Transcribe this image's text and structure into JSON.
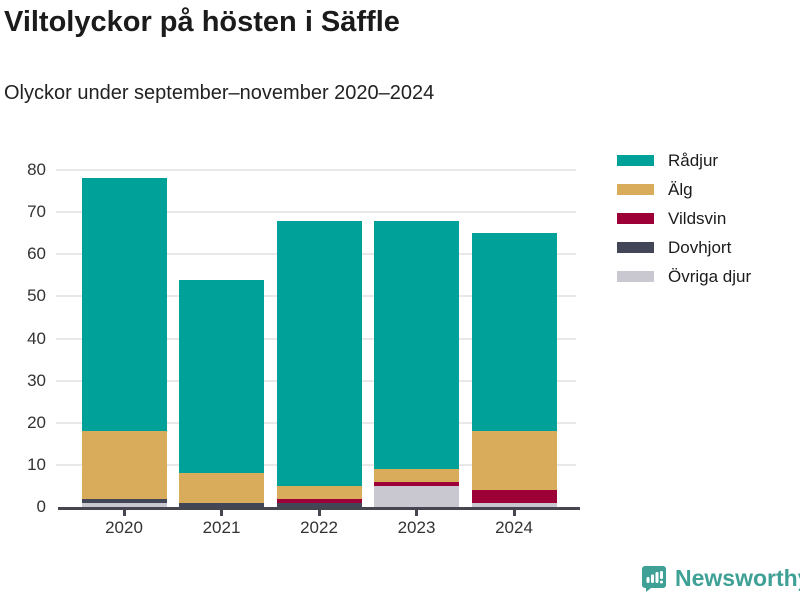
{
  "header": {
    "title": "Viltolyckor på hösten i Säffle",
    "subtitle": "Olyckor under september–november 2020–2024"
  },
  "chart_data": {
    "type": "bar",
    "stacked": true,
    "title": "Viltolyckor på hösten i Säffle",
    "subtitle": "Olyckor under september–november 2020–2024",
    "categories": [
      "2020",
      "2021",
      "2022",
      "2023",
      "2024"
    ],
    "series": [
      {
        "name": "Rådjur",
        "color": "#00a199",
        "values": [
          60,
          46,
          63,
          59,
          47
        ]
      },
      {
        "name": "Älg",
        "color": "#d9ac5c",
        "values": [
          16,
          7,
          3,
          3,
          14
        ]
      },
      {
        "name": "Vildsvin",
        "color": "#9c0036",
        "values": [
          0,
          0,
          1,
          1,
          3
        ]
      },
      {
        "name": "Dovhjort",
        "color": "#424656",
        "values": [
          1,
          1,
          1,
          0,
          0
        ]
      },
      {
        "name": "Övriga djur",
        "color": "#c9c8d1",
        "values": [
          1,
          0,
          0,
          5,
          1
        ]
      }
    ],
    "totals": [
      78,
      54,
      68,
      68,
      65
    ],
    "stack_order_bottom_to_top": [
      "Övriga djur",
      "Dovhjort",
      "Vildsvin",
      "Älg",
      "Rådjur"
    ],
    "xlabel": "",
    "ylabel": "",
    "ylim": [
      0,
      80
    ],
    "yticks": [
      0,
      10,
      20,
      30,
      40,
      50,
      60,
      70,
      80
    ],
    "grid": true,
    "legend_position": "right"
  },
  "colors": {
    "grid": "#e8e8e8",
    "axis": "#45464f",
    "text": "#1b1b1b",
    "brand": "#3fa096"
  },
  "footer": {
    "brand": "Newsworthy"
  }
}
